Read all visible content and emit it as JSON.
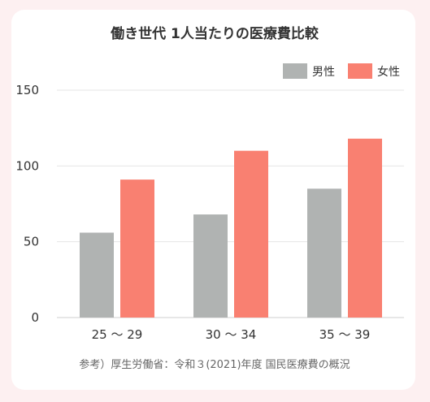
{
  "chart_data": {
    "type": "bar",
    "title": "働き世代 1人当たりの医療費比較",
    "categories": [
      "25 〜 29",
      "30 〜 34",
      "35 〜 39"
    ],
    "series": [
      {
        "name": "男性",
        "color": "#b0b3b2",
        "values": [
          56,
          68,
          85
        ]
      },
      {
        "name": "女性",
        "color": "#f98071",
        "values": [
          91,
          110,
          118
        ]
      }
    ],
    "ylim": [
      0,
      150
    ],
    "yticks": [
      0,
      50,
      100,
      150
    ],
    "grid": true,
    "legend_position": "top-right",
    "xlabel": "",
    "ylabel": "",
    "source": "参考）厚生労働省：令和３(2021)年度 国民医療費の概況"
  }
}
